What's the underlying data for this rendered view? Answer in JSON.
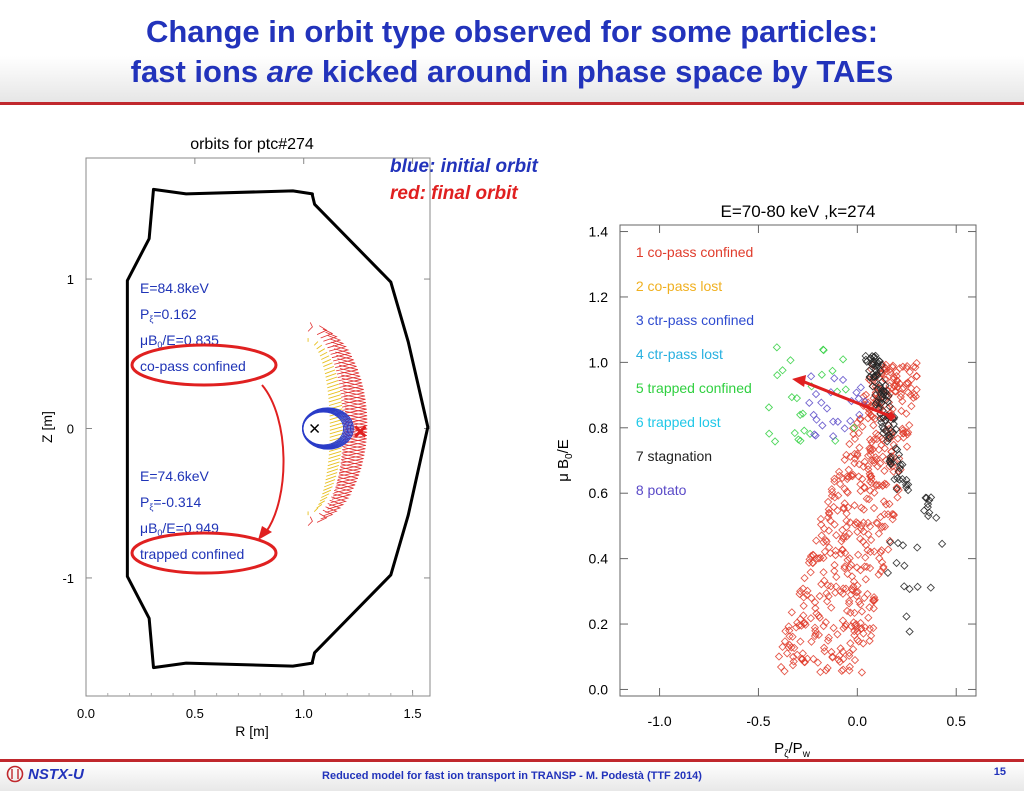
{
  "slide": {
    "title_line1": "Change in orbit type observed for some particles:",
    "title_line2_pre": "fast ions ",
    "title_line2_em": "are",
    "title_line2_post": " kicked around in phase space by TAEs",
    "note_blue": "blue: initial orbit",
    "note_red": "red: final orbit",
    "footer_text": "Reduced model for fast ion transport in TRANSP - M. Podestà (TTF 2014)",
    "page_number": "15",
    "brand": "NSTX-U"
  },
  "colors": {
    "title": "#2233bb",
    "accent_red": "#c0282d",
    "initial_orbit": "#2a3cc8",
    "final_orbit": "#e03030",
    "intermediate_orbit": "#e8c020"
  },
  "chart_data": [
    {
      "type": "line",
      "title": "orbits for ptc#274",
      "xlabel": "R [m]",
      "ylabel": "Z [m]",
      "xlim": [
        0.0,
        1.58
      ],
      "ylim": [
        -1.79,
        1.81
      ],
      "x_ticks": [
        "0.0",
        "0.5",
        "1.0",
        "1.5"
      ],
      "y_ticks": [
        "1",
        "0",
        "-1"
      ],
      "vessel_boundary": [
        [
          0.31,
          1.6
        ],
        [
          0.46,
          1.57
        ],
        [
          0.95,
          1.59
        ],
        [
          1.04,
          1.57
        ],
        [
          1.04,
          1.56
        ],
        [
          1.05,
          1.5
        ],
        [
          1.4,
          0.98
        ],
        [
          1.48,
          0.58
        ],
        [
          1.57,
          0.01
        ],
        [
          1.48,
          -0.58
        ],
        [
          1.4,
          -0.98
        ],
        [
          1.05,
          -1.5
        ],
        [
          1.04,
          -1.56
        ],
        [
          1.04,
          -1.57
        ],
        [
          0.95,
          -1.59
        ],
        [
          0.46,
          -1.57
        ],
        [
          0.31,
          -1.6
        ],
        [
          0.29,
          -1.27
        ],
        [
          0.19,
          -0.99
        ],
        [
          0.19,
          0.99
        ],
        [
          0.29,
          1.27
        ]
      ],
      "initial_orbit": {
        "label_energy": "E=84.8keV",
        "label_pzeta": "=0.162",
        "label_mu": "/E=0.835",
        "classification": "co-pass confined",
        "center": [
          1.09,
          0.0
        ],
        "radius": [
          0.11,
          0.13
        ]
      },
      "final_orbit": {
        "label_energy": "E=74.6keV",
        "label_pzeta": "=-0.314",
        "label_mu": "/E=0.949",
        "classification": "trapped confined",
        "inner_arc_r": 1.18,
        "outer_arc_r": 1.26,
        "z_extent": 0.65
      },
      "magnetic_axis": [
        1.05,
        0.0
      ],
      "final_marker": [
        1.26,
        -0.02
      ]
    },
    {
      "type": "scatter",
      "title": "E=70-80 keV ,k=274",
      "xlabel": "P",
      "xlabel_sub": "ζ",
      "xlabel_mid": "/P",
      "xlabel_sub2": "w",
      "ylabel": "μ B",
      "ylabel_sub": "0",
      "ylabel_post": "/E",
      "xlim": [
        -1.2,
        0.6
      ],
      "ylim": [
        -0.02,
        1.42
      ],
      "x_ticks": [
        "-1.0",
        "-0.5",
        "0.0",
        "0.5"
      ],
      "y_ticks": [
        "0.0",
        "0.2",
        "0.4",
        "0.6",
        "0.8",
        "1.0",
        "1.2",
        "1.4"
      ],
      "legend": [
        {
          "label": "1 co-pass confined",
          "color": "#e03c2c"
        },
        {
          "label": "2 co-pass lost",
          "color": "#f0b020"
        },
        {
          "label": "3 ctr-pass confined",
          "color": "#2f4cd0"
        },
        {
          "label": "4 ctr-pass lost",
          "color": "#27b0e0"
        },
        {
          "label": "5 trapped confined",
          "color": "#30d040"
        },
        {
          "label": "6 trapped lost",
          "color": "#20c8e8"
        },
        {
          "label": "7 stagnation",
          "color": "#222222"
        },
        {
          "label": "8 potato",
          "color": "#5a4ac8"
        }
      ],
      "arrow": {
        "from": [
          0.17,
          0.835
        ],
        "to": [
          -0.33,
          0.949
        ],
        "color": "#e02020"
      },
      "series_clusters": [
        {
          "class": 1,
          "n": 520,
          "x_range": [
            -0.33,
            0.33
          ],
          "y_range": [
            0.05,
            1.0
          ]
        },
        {
          "class": 7,
          "n": 130,
          "x_range": [
            0.02,
            0.45
          ],
          "y_range": [
            0.1,
            1.02
          ]
        },
        {
          "class": 5,
          "n": 26,
          "x_range": [
            -0.45,
            0.0
          ],
          "y_range": [
            0.72,
            1.05
          ]
        },
        {
          "class": 8,
          "n": 24,
          "x_range": [
            -0.25,
            0.05
          ],
          "y_range": [
            0.77,
            0.98
          ]
        }
      ]
    }
  ]
}
